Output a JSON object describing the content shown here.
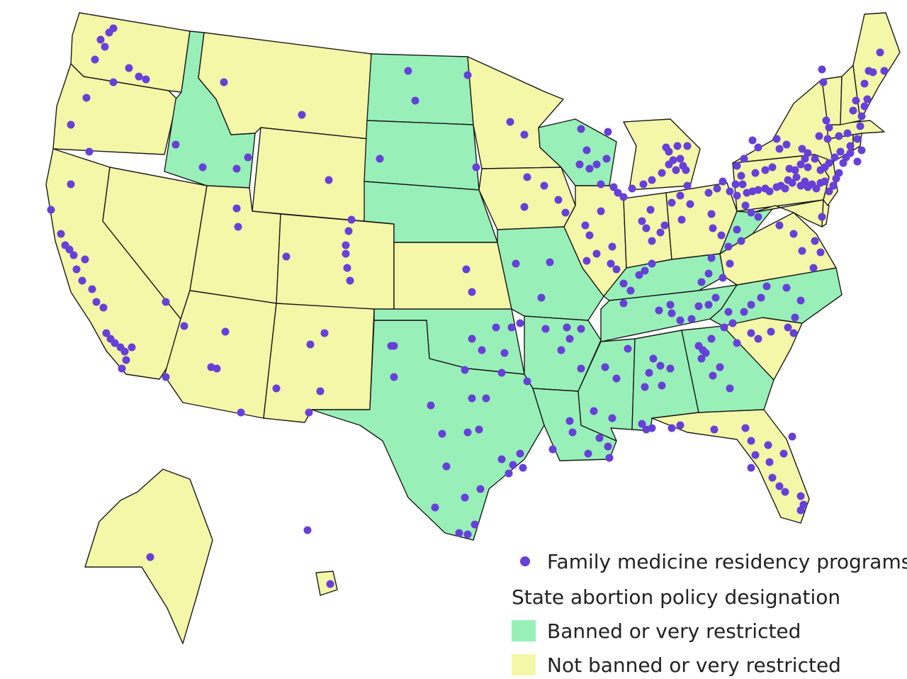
{
  "colors": {
    "banned": "#98f0b8",
    "not_banned": "#f4f6a8",
    "program_dot": "#6640d8",
    "border": "#1a1a1a"
  },
  "legend": {
    "program_label": "Family medicine residency programs",
    "policy_heading": "State abortion policy designation",
    "banned_label": "Banned or very restricted",
    "not_banned_label": "Not banned or very restricted"
  },
  "states": [
    {
      "name": "Washington",
      "policy": "not_banned"
    },
    {
      "name": "Oregon",
      "policy": "not_banned"
    },
    {
      "name": "California",
      "policy": "not_banned"
    },
    {
      "name": "Nevada",
      "policy": "not_banned"
    },
    {
      "name": "Idaho",
      "policy": "banned"
    },
    {
      "name": "Montana",
      "policy": "not_banned"
    },
    {
      "name": "Wyoming",
      "policy": "not_banned"
    },
    {
      "name": "Utah",
      "policy": "not_banned"
    },
    {
      "name": "Colorado",
      "policy": "not_banned"
    },
    {
      "name": "Arizona",
      "policy": "not_banned"
    },
    {
      "name": "New Mexico",
      "policy": "not_banned"
    },
    {
      "name": "North Dakota",
      "policy": "banned"
    },
    {
      "name": "South Dakota",
      "policy": "banned"
    },
    {
      "name": "Nebraska",
      "policy": "banned"
    },
    {
      "name": "Kansas",
      "policy": "not_banned"
    },
    {
      "name": "Oklahoma",
      "policy": "banned"
    },
    {
      "name": "Texas",
      "policy": "banned"
    },
    {
      "name": "Minnesota",
      "policy": "not_banned"
    },
    {
      "name": "Iowa",
      "policy": "not_banned"
    },
    {
      "name": "Missouri",
      "policy": "banned"
    },
    {
      "name": "Arkansas",
      "policy": "banned"
    },
    {
      "name": "Louisiana",
      "policy": "banned"
    },
    {
      "name": "Wisconsin",
      "policy": "banned"
    },
    {
      "name": "Illinois",
      "policy": "not_banned"
    },
    {
      "name": "Michigan",
      "policy": "not_banned"
    },
    {
      "name": "Indiana",
      "policy": "not_banned"
    },
    {
      "name": "Ohio",
      "policy": "not_banned"
    },
    {
      "name": "Kentucky",
      "policy": "banned"
    },
    {
      "name": "Tennessee",
      "policy": "banned"
    },
    {
      "name": "Mississippi",
      "policy": "banned"
    },
    {
      "name": "Alabama",
      "policy": "banned"
    },
    {
      "name": "Georgia",
      "policy": "banned"
    },
    {
      "name": "Florida",
      "policy": "not_banned"
    },
    {
      "name": "South Carolina",
      "policy": "not_banned"
    },
    {
      "name": "North Carolina",
      "policy": "banned"
    },
    {
      "name": "Virginia",
      "policy": "not_banned"
    },
    {
      "name": "West Virginia",
      "policy": "banned"
    },
    {
      "name": "Pennsylvania",
      "policy": "not_banned"
    },
    {
      "name": "New York",
      "policy": "not_banned"
    },
    {
      "name": "Maryland",
      "policy": "not_banned"
    },
    {
      "name": "Delaware",
      "policy": "not_banned"
    },
    {
      "name": "New Jersey",
      "policy": "not_banned"
    },
    {
      "name": "Connecticut",
      "policy": "not_banned"
    },
    {
      "name": "Rhode Island",
      "policy": "not_banned"
    },
    {
      "name": "Massachusetts",
      "policy": "not_banned"
    },
    {
      "name": "Vermont",
      "policy": "not_banned"
    },
    {
      "name": "New Hampshire",
      "policy": "not_banned"
    },
    {
      "name": "Maine",
      "policy": "not_banned"
    },
    {
      "name": "Alaska",
      "policy": "not_banned"
    },
    {
      "name": "Hawaii",
      "policy": "not_banned"
    }
  ]
}
